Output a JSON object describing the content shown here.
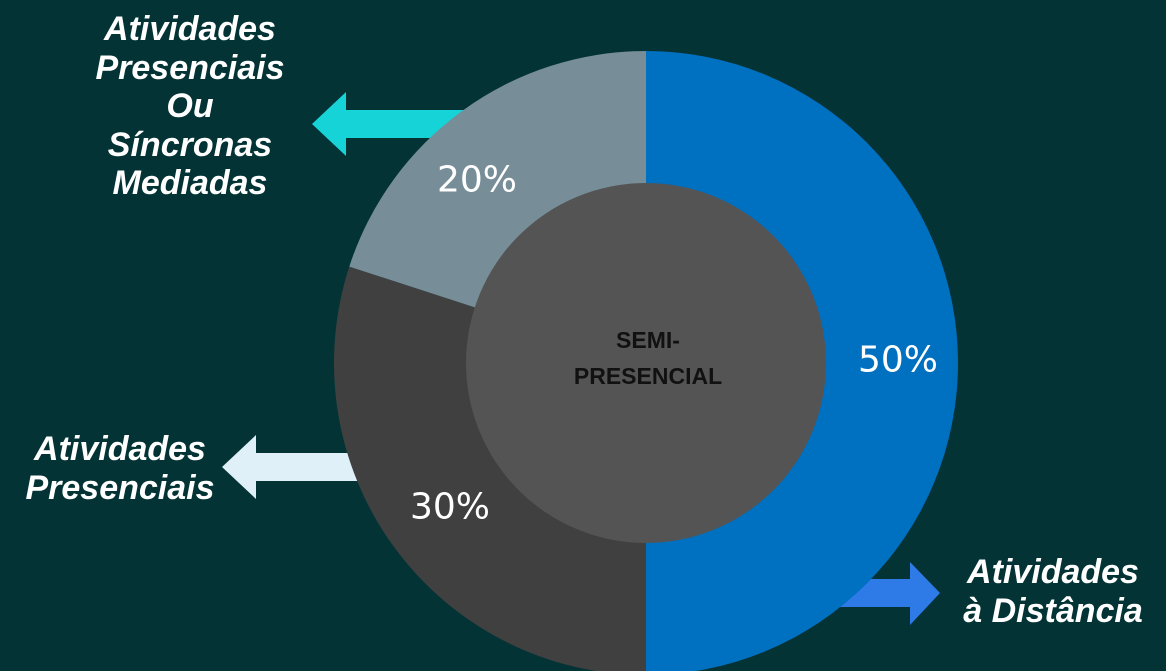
{
  "chart_data": {
    "type": "pie",
    "center_label": [
      "SEMI-",
      "PRESENCIAL"
    ],
    "slices": [
      {
        "label": "Atividades à Distância",
        "value": 50,
        "value_label": "50%",
        "color": "#0070c0"
      },
      {
        "label": "Atividades Presenciais",
        "value": 30,
        "value_label": "30%",
        "color": "#404040"
      },
      {
        "label": "Atividades Presenciais Ou Síncronas Mediadas",
        "value": 20,
        "value_label": "20%",
        "color": "#778e99"
      }
    ]
  },
  "labels": {
    "top": "Atividades\nPresenciais\nOu\nSíncronas\nMediadas",
    "left": "Atividades\nPresenciais",
    "bottom": "Atividades\nà Distância"
  },
  "arrow_colors": {
    "top": "#16d3d8",
    "left": "#dff0f8",
    "bottom": "#2e7be8"
  },
  "colors": {
    "background": "#033334",
    "center_circle": "#545454"
  }
}
